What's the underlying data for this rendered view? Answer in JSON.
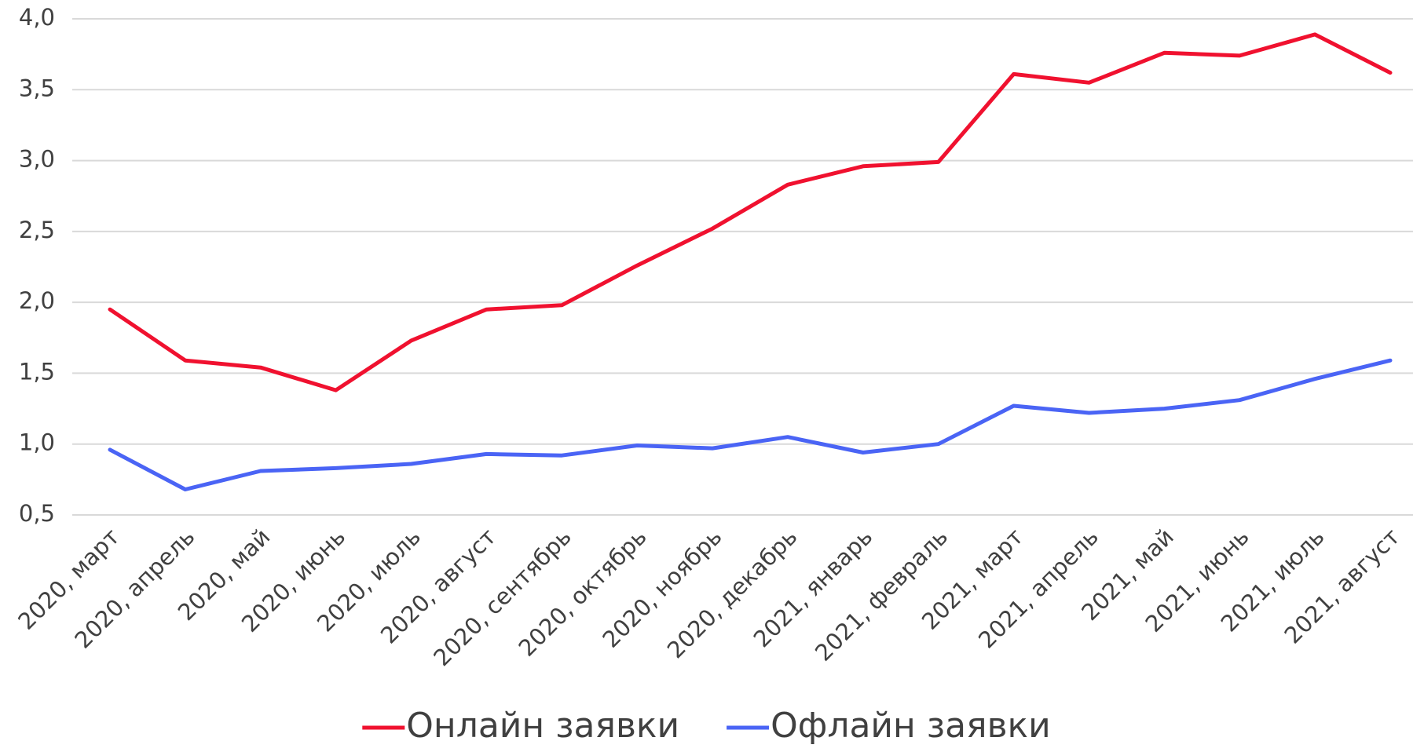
{
  "chart_data": {
    "type": "line",
    "categories": [
      "2020, март",
      "2020, апрель",
      "2020, май",
      "2020, июнь",
      "2020, июль",
      "2020, август",
      "2020, сентябрь",
      "2020, октябрь",
      "2020, ноябрь",
      "2020, декабрь",
      "2021, январь",
      "2021, февраль",
      "2021, март",
      "2021, апрель",
      "2021, май",
      "2021, июнь",
      "2021, июль",
      "2021, август"
    ],
    "series": [
      {
        "name": "Онлайн заявки",
        "color": "#f0112f",
        "values": [
          1.95,
          1.59,
          1.54,
          1.38,
          1.73,
          1.95,
          1.98,
          2.26,
          2.52,
          2.83,
          2.96,
          2.99,
          3.61,
          3.55,
          3.76,
          3.74,
          3.89,
          3.62
        ]
      },
      {
        "name": "Офлайн заявки",
        "color": "#4a64f5",
        "values": [
          0.96,
          0.68,
          0.81,
          0.83,
          0.86,
          0.93,
          0.92,
          0.99,
          0.97,
          1.05,
          0.94,
          1.0,
          1.27,
          1.22,
          1.25,
          1.31,
          1.46,
          1.59
        ]
      }
    ],
    "ylim": [
      0.5,
      4.0
    ],
    "yticks": [
      {
        "value": 0.5,
        "label": "0,5"
      },
      {
        "value": 1.0,
        "label": "1,0"
      },
      {
        "value": 1.5,
        "label": "1,5"
      },
      {
        "value": 2.0,
        "label": "2,0"
      },
      {
        "value": 2.5,
        "label": "2,5"
      },
      {
        "value": 3.0,
        "label": "3,0"
      },
      {
        "value": 3.5,
        "label": "3,5"
      },
      {
        "value": 4.0,
        "label": "4,0"
      }
    ],
    "grid": true,
    "legend": "bottom"
  }
}
